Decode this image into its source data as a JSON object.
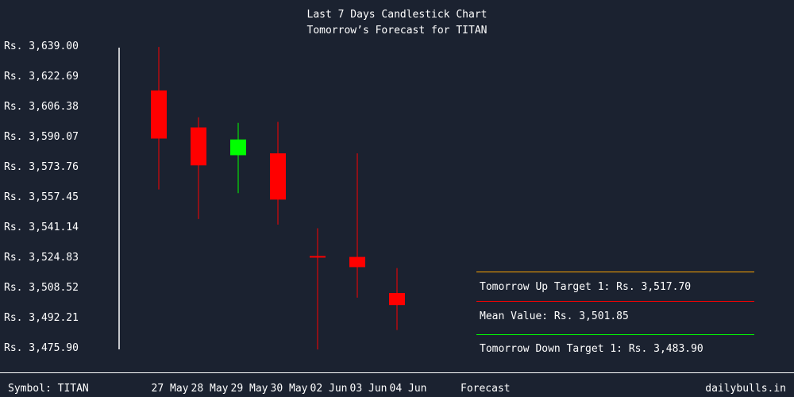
{
  "chart_data": {
    "type": "candlestick",
    "title": "Last 7 Days Candlestick Chart",
    "subtitle": "Tomorrow’s Forecast for TITAN",
    "y_ticks": [
      "Rs. 3,639.00",
      "Rs. 3,622.69",
      "Rs. 3,606.38",
      "Rs. 3,590.07",
      "Rs. 3,573.76",
      "Rs. 3,557.45",
      "Rs. 3,541.14",
      "Rs. 3,524.83",
      "Rs. 3,508.52",
      "Rs. 3,492.21",
      "Rs. 3,475.90"
    ],
    "ylim": [
      3475.9,
      3639.0
    ],
    "categories": [
      "27 May",
      "28 May",
      "29 May",
      "30 May",
      "02 Jun",
      "03 Jun",
      "04 Jun"
    ],
    "candles": [
      {
        "date": "27 May",
        "open": 3615.0,
        "high": 3638.5,
        "low": 3561.5,
        "close": 3589.0
      },
      {
        "date": "28 May",
        "open": 3595.0,
        "high": 3600.5,
        "low": 3545.5,
        "close": 3574.5
      },
      {
        "date": "29 May",
        "open": 3580.0,
        "high": 3597.5,
        "low": 3559.5,
        "close": 3588.5
      },
      {
        "date": "30 May",
        "open": 3581.0,
        "high": 3598.0,
        "low": 3542.5,
        "close": 3556.0
      },
      {
        "date": "02 Jun",
        "open": 3525.5,
        "high": 3540.5,
        "low": 3475.0,
        "close": 3525.0
      },
      {
        "date": "03 Jun",
        "open": 3525.0,
        "high": 3581.0,
        "low": 3503.0,
        "close": 3519.5
      },
      {
        "date": "04 Jun",
        "open": 3505.5,
        "high": 3519.0,
        "low": 3485.5,
        "close": 3499.0
      }
    ],
    "up_color": "#00ff00",
    "down_color": "#ff0000",
    "forecast": [
      {
        "label": "Tomorrow Up Target 1: Rs. 3,517.70",
        "color": "#ffa500"
      },
      {
        "label": "Mean Value: Rs. 3,501.85",
        "color": "#ff0000"
      },
      {
        "label": "Tomorrow Down Target 1: Rs. 3,483.90",
        "color": "#00ff00"
      }
    ]
  },
  "footer": {
    "symbol": "Symbol: TITAN",
    "forecast_label": "Forecast",
    "site": "dailybulls.in"
  }
}
